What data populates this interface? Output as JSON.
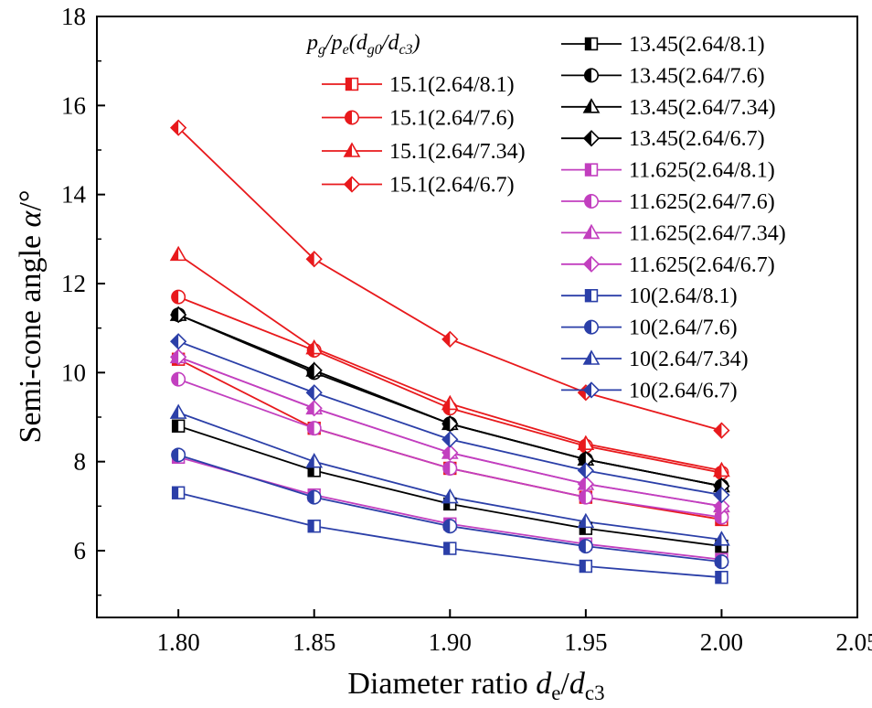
{
  "chart_data": {
    "type": "line",
    "xlabel": "Diameter ratio dₑ/dₓ",
    "xlabel_parts": [
      {
        "text": "Diameter ratio ",
        "style": "normal",
        "sub": false
      },
      {
        "text": "d",
        "style": "italic",
        "sub": false
      },
      {
        "text": "e",
        "style": "normal",
        "sub": true
      },
      {
        "text": "/",
        "style": "normal",
        "sub": false
      },
      {
        "text": "d",
        "style": "italic",
        "sub": false
      },
      {
        "text": "c3",
        "style": "normal",
        "sub": true
      }
    ],
    "ylabel_parts": [
      {
        "text": "Semi-cone angle ",
        "style": "normal",
        "sub": false
      },
      {
        "text": "α",
        "style": "italic",
        "sub": false
      },
      {
        "text": "/°",
        "style": "normal",
        "sub": false
      }
    ],
    "legend_title_parts": [
      {
        "text": "p",
        "style": "italic",
        "sub": false
      },
      {
        "text": "g",
        "style": "normal",
        "sub": true
      },
      {
        "text": "/",
        "style": "normal",
        "sub": false
      },
      {
        "text": "p",
        "style": "italic",
        "sub": false
      },
      {
        "text": "e",
        "style": "normal",
        "sub": true
      },
      {
        "text": "(",
        "style": "normal",
        "sub": false
      },
      {
        "text": "d",
        "style": "italic",
        "sub": false
      },
      {
        "text": "g0",
        "style": "normal",
        "sub": true
      },
      {
        "text": "/",
        "style": "normal",
        "sub": false
      },
      {
        "text": "d",
        "style": "italic",
        "sub": false
      },
      {
        "text": "c3",
        "style": "normal",
        "sub": true
      },
      {
        "text": ")",
        "style": "normal",
        "sub": false
      }
    ],
    "xlim": [
      1.77,
      2.05
    ],
    "ylim": [
      4.5,
      18
    ],
    "xticks": [
      "1.80",
      "1.85",
      "1.90",
      "1.95",
      "2.00",
      "2.05"
    ],
    "yticks": [
      "6",
      "8",
      "10",
      "12",
      "14",
      "16",
      "18"
    ],
    "grid": false,
    "x": [
      1.8,
      1.85,
      1.9,
      1.95,
      2.0
    ],
    "series": [
      {
        "name": "15.1(2.64/8.1)",
        "color": "#e8191c",
        "marker": "square",
        "values": [
          10.3,
          8.75,
          7.85,
          7.2,
          6.7
        ]
      },
      {
        "name": "15.1(2.64/7.6)",
        "color": "#e8191c",
        "marker": "circle",
        "values": [
          11.7,
          10.5,
          9.2,
          8.35,
          7.75
        ]
      },
      {
        "name": "15.1(2.64/7.34)",
        "color": "#e8191c",
        "marker": "triangle",
        "values": [
          12.65,
          10.55,
          9.3,
          8.4,
          7.8
        ]
      },
      {
        "name": "15.1(2.64/6.7)",
        "color": "#e8191c",
        "marker": "diamond",
        "values": [
          15.5,
          12.55,
          10.75,
          9.55,
          8.7
        ]
      },
      {
        "name": "13.45(2.64/8.1)",
        "color": "#000000",
        "marker": "square",
        "values": [
          8.8,
          7.8,
          7.05,
          6.5,
          6.1
        ]
      },
      {
        "name": "13.45(2.64/7.6)",
        "color": "#000000",
        "marker": "circle",
        "values": [
          11.3,
          10.0,
          8.85,
          8.05,
          7.45
        ]
      },
      {
        "name": "13.45(2.64/7.34)",
        "color": "#000000",
        "marker": "triangle",
        "values": [
          11.3,
          10.05,
          8.85,
          8.05,
          7.45
        ]
      },
      {
        "name": "13.45(2.64/6.7)",
        "color": "#000000",
        "marker": "diamond",
        "values": [
          11.3,
          10.05,
          8.85,
          8.05,
          7.45
        ]
      },
      {
        "name": "11.625(2.64/8.1)",
        "color": "#c23fbf",
        "marker": "square",
        "values": [
          8.1,
          7.25,
          6.6,
          6.15,
          5.8
        ]
      },
      {
        "name": "11.625(2.64/7.6)",
        "color": "#c23fbf",
        "marker": "circle",
        "values": [
          9.85,
          8.75,
          7.85,
          7.2,
          6.75
        ]
      },
      {
        "name": "11.625(2.64/7.34)",
        "color": "#c23fbf",
        "marker": "triangle",
        "values": [
          10.35,
          9.2,
          8.2,
          7.5,
          7.0
        ]
      },
      {
        "name": "11.625(2.64/6.7)",
        "color": "#c23fbf",
        "marker": "diamond",
        "values": [
          10.35,
          9.2,
          8.2,
          7.5,
          7.0
        ]
      },
      {
        "name": "10(2.64/8.1)",
        "color": "#2b3fa8",
        "marker": "square",
        "values": [
          7.3,
          6.55,
          6.05,
          5.65,
          5.4
        ]
      },
      {
        "name": "10(2.64/7.6)",
        "color": "#2b3fa8",
        "marker": "circle",
        "values": [
          8.15,
          7.2,
          6.55,
          6.1,
          5.75
        ]
      },
      {
        "name": "10(2.64/7.34)",
        "color": "#2b3fa8",
        "marker": "triangle",
        "values": [
          9.1,
          8.0,
          7.2,
          6.65,
          6.25
        ]
      },
      {
        "name": "10(2.64/6.7)",
        "color": "#2b3fa8",
        "marker": "diamond",
        "values": [
          10.7,
          9.55,
          8.5,
          7.8,
          7.25
        ]
      }
    ],
    "legend_columns": [
      [
        0,
        1,
        2,
        3
      ],
      [
        4,
        5,
        6,
        7,
        8,
        9,
        10,
        11,
        12,
        13,
        14,
        15
      ]
    ]
  }
}
